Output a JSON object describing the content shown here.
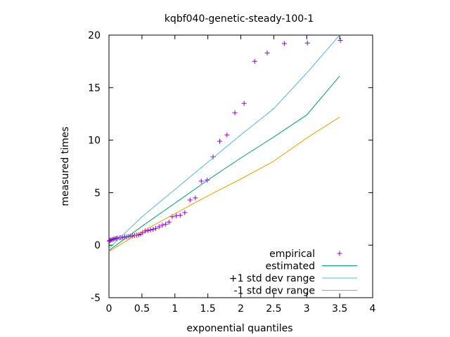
{
  "chart_data": {
    "type": "scatter",
    "title": "kqbf040-genetic-steady-100-1",
    "xlabel": "exponential quantiles",
    "ylabel": "measured times",
    "xlim": [
      0,
      4
    ],
    "ylim": [
      -5,
      20
    ],
    "xticks": [
      0,
      0.5,
      1,
      1.5,
      2,
      2.5,
      3,
      3.5,
      4
    ],
    "xtick_labels": [
      "0",
      "0.5",
      "1",
      "1.5",
      "2",
      "2.5",
      "3",
      "3.5",
      "4"
    ],
    "yticks": [
      -5,
      0,
      5,
      10,
      15,
      20
    ],
    "ytick_labels": [
      "-5",
      "0",
      "5",
      "10",
      "15",
      "20"
    ],
    "legend_position": "bottom-right",
    "grid": false,
    "series": [
      {
        "name": "empirical",
        "kind": "points",
        "marker": "+",
        "color": "#9400d3",
        "points": [
          [
            0.005,
            0.4
          ],
          [
            0.015,
            0.45
          ],
          [
            0.03,
            0.5
          ],
          [
            0.05,
            0.55
          ],
          [
            0.07,
            0.58
          ],
          [
            0.09,
            0.62
          ],
          [
            0.11,
            0.65
          ],
          [
            0.13,
            0.68
          ],
          [
            0.16,
            0.7
          ],
          [
            0.18,
            0.72
          ],
          [
            0.21,
            0.75
          ],
          [
            0.24,
            0.78
          ],
          [
            0.27,
            0.8
          ],
          [
            0.3,
            0.83
          ],
          [
            0.33,
            0.86
          ],
          [
            0.36,
            0.88
          ],
          [
            0.39,
            0.92
          ],
          [
            0.42,
            0.96
          ],
          [
            0.45,
            1.0
          ],
          [
            0.48,
            1.05
          ],
          [
            0.51,
            1.2
          ],
          [
            0.55,
            1.35
          ],
          [
            0.59,
            1.4
          ],
          [
            0.63,
            1.45
          ],
          [
            0.67,
            1.5
          ],
          [
            0.71,
            1.6
          ],
          [
            0.76,
            1.75
          ],
          [
            0.81,
            1.9
          ],
          [
            0.86,
            2.0
          ],
          [
            0.91,
            2.2
          ],
          [
            0.96,
            2.7
          ],
          [
            1.02,
            2.8
          ],
          [
            1.08,
            2.85
          ],
          [
            1.15,
            3.1
          ],
          [
            1.23,
            4.3
          ],
          [
            1.31,
            4.5
          ],
          [
            1.4,
            6.1
          ],
          [
            1.49,
            6.2
          ],
          [
            1.58,
            8.4
          ],
          [
            1.68,
            9.9
          ],
          [
            1.79,
            10.5
          ],
          [
            1.91,
            12.6
          ],
          [
            2.05,
            13.5
          ],
          [
            2.21,
            17.5
          ],
          [
            2.4,
            18.3
          ],
          [
            2.66,
            19.2
          ],
          [
            3.01,
            19.25
          ],
          [
            3.51,
            19.5
          ]
        ]
      },
      {
        "name": "estimated",
        "kind": "line",
        "color": "#009e73",
        "points": [
          [
            0,
            -0.5
          ],
          [
            0.5,
            1.8
          ],
          [
            1,
            4.0
          ],
          [
            1.5,
            6.2
          ],
          [
            2,
            8.3
          ],
          [
            2.5,
            10.3
          ],
          [
            3,
            12.4
          ],
          [
            3.5,
            16.1
          ]
        ]
      },
      {
        "name": "+1 std dev range",
        "kind": "line",
        "color": "#56b4e9",
        "points": [
          [
            0,
            -0.3
          ],
          [
            0.5,
            2.7
          ],
          [
            1,
            5.3
          ],
          [
            1.5,
            7.9
          ],
          [
            2,
            10.5
          ],
          [
            2.5,
            13.0
          ],
          [
            3,
            16.4
          ],
          [
            3.5,
            20.0
          ]
        ]
      },
      {
        "name": "-1 std dev range",
        "kind": "line",
        "color": "#e69f00",
        "points": [
          [
            0,
            -0.6
          ],
          [
            0.5,
            1.3
          ],
          [
            1,
            3.0
          ],
          [
            1.5,
            4.7
          ],
          [
            2,
            6.3
          ],
          [
            2.5,
            8.0
          ],
          [
            3,
            10.2
          ],
          [
            3.5,
            12.2
          ]
        ]
      }
    ]
  }
}
